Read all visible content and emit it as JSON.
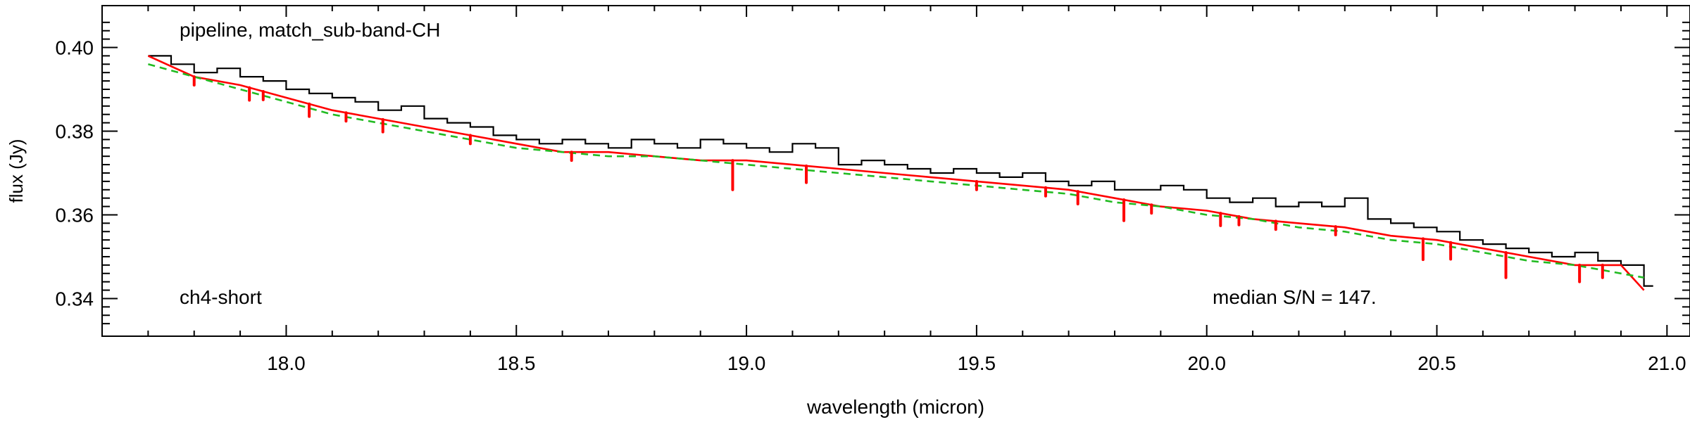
{
  "chart_data": {
    "type": "line",
    "xlabel": "wavelength (micron)",
    "ylabel": "flux (Jy)",
    "xlim": [
      17.6,
      21.05
    ],
    "ylim": [
      0.331,
      0.41
    ],
    "grid": false,
    "xticks": [
      18.0,
      18.5,
      19.0,
      19.5,
      20.0,
      20.5,
      21.0
    ],
    "xtick_labels": [
      "18.0",
      "18.5",
      "19.0",
      "19.5",
      "20.0",
      "20.5",
      "21.0"
    ],
    "yticks": [
      0.34,
      0.36,
      0.38,
      0.4
    ],
    "ytick_labels": [
      "0.34",
      "0.36",
      "0.38",
      "0.40"
    ],
    "annotations": {
      "top_left": "pipeline, match_sub-band-CH",
      "bottom_left": "ch4-short",
      "bottom_right": "median S/N = 147."
    },
    "series": [
      {
        "style": "step",
        "color": "#000000",
        "x": [
          17.7,
          17.75,
          17.8,
          17.85,
          17.9,
          17.95,
          18.0,
          18.05,
          18.1,
          18.15,
          18.2,
          18.25,
          18.3,
          18.35,
          18.4,
          18.45,
          18.5,
          18.55,
          18.6,
          18.65,
          18.7,
          18.75,
          18.8,
          18.85,
          18.9,
          18.95,
          19.0,
          19.05,
          19.1,
          19.15,
          19.2,
          19.25,
          19.3,
          19.35,
          19.4,
          19.45,
          19.5,
          19.55,
          19.6,
          19.65,
          19.7,
          19.75,
          19.8,
          19.85,
          19.9,
          19.95,
          20.0,
          20.05,
          20.1,
          20.15,
          20.2,
          20.25,
          20.3,
          20.35,
          20.4,
          20.45,
          20.5,
          20.55,
          20.6,
          20.65,
          20.7,
          20.75,
          20.8,
          20.85,
          20.9,
          20.95
        ],
        "values": [
          0.398,
          0.396,
          0.394,
          0.395,
          0.393,
          0.392,
          0.39,
          0.389,
          0.388,
          0.387,
          0.385,
          0.386,
          0.383,
          0.382,
          0.381,
          0.379,
          0.378,
          0.377,
          0.378,
          0.377,
          0.376,
          0.378,
          0.377,
          0.376,
          0.378,
          0.377,
          0.376,
          0.375,
          0.377,
          0.376,
          0.372,
          0.373,
          0.372,
          0.371,
          0.37,
          0.371,
          0.37,
          0.369,
          0.37,
          0.368,
          0.367,
          0.368,
          0.366,
          0.366,
          0.367,
          0.366,
          0.364,
          0.363,
          0.364,
          0.362,
          0.363,
          0.362,
          0.364,
          0.359,
          0.358,
          0.357,
          0.356,
          0.354,
          0.353,
          0.352,
          0.351,
          0.35,
          0.351,
          0.349,
          0.348,
          0.343
        ]
      },
      {
        "style": "line",
        "color": "#ff0000",
        "x": [
          17.7,
          17.8,
          17.9,
          18.0,
          18.1,
          18.2,
          18.3,
          18.4,
          18.5,
          18.6,
          18.7,
          18.8,
          18.9,
          19.0,
          19.1,
          19.2,
          19.3,
          19.4,
          19.5,
          19.6,
          19.7,
          19.8,
          19.9,
          20.0,
          20.1,
          20.2,
          20.3,
          20.4,
          20.5,
          20.6,
          20.7,
          20.8,
          20.9,
          20.95
        ],
        "values": [
          0.398,
          0.393,
          0.391,
          0.388,
          0.385,
          0.383,
          0.381,
          0.379,
          0.377,
          0.375,
          0.375,
          0.374,
          0.373,
          0.373,
          0.372,
          0.371,
          0.37,
          0.369,
          0.368,
          0.367,
          0.366,
          0.364,
          0.362,
          0.361,
          0.359,
          0.358,
          0.357,
          0.355,
          0.354,
          0.352,
          0.35,
          0.348,
          0.348,
          0.342
        ]
      },
      {
        "style": "dashed",
        "color": "#22bb22",
        "x": [
          17.7,
          17.8,
          17.9,
          18.0,
          18.1,
          18.2,
          18.3,
          18.4,
          18.5,
          18.6,
          18.7,
          18.8,
          18.9,
          19.0,
          19.1,
          19.2,
          19.3,
          19.4,
          19.5,
          19.6,
          19.7,
          19.8,
          19.9,
          20.0,
          20.1,
          20.2,
          20.3,
          20.4,
          20.5,
          20.6,
          20.7,
          20.8,
          20.9,
          20.95
        ],
        "values": [
          0.396,
          0.393,
          0.39,
          0.387,
          0.384,
          0.382,
          0.38,
          0.378,
          0.376,
          0.375,
          0.374,
          0.374,
          0.373,
          0.372,
          0.371,
          0.37,
          0.369,
          0.368,
          0.367,
          0.366,
          0.365,
          0.363,
          0.362,
          0.36,
          0.359,
          0.357,
          0.356,
          0.354,
          0.353,
          0.351,
          0.349,
          0.348,
          0.346,
          0.345
        ]
      }
    ],
    "absorption_dips": {
      "color": "#ff0000",
      "x": [
        17.8,
        17.92,
        17.95,
        18.05,
        18.13,
        18.21,
        18.4,
        18.62,
        18.97,
        19.13,
        19.5,
        19.65,
        19.72,
        19.82,
        19.88,
        20.03,
        20.07,
        20.15,
        20.28,
        20.47,
        20.53,
        20.65,
        20.81,
        20.86
      ],
      "depth": [
        0.002,
        0.003,
        0.002,
        0.003,
        0.002,
        0.003,
        0.002,
        0.002,
        0.007,
        0.004,
        0.002,
        0.002,
        0.003,
        0.005,
        0.002,
        0.003,
        0.002,
        0.002,
        0.002,
        0.005,
        0.004,
        0.006,
        0.004,
        0.003
      ]
    }
  }
}
